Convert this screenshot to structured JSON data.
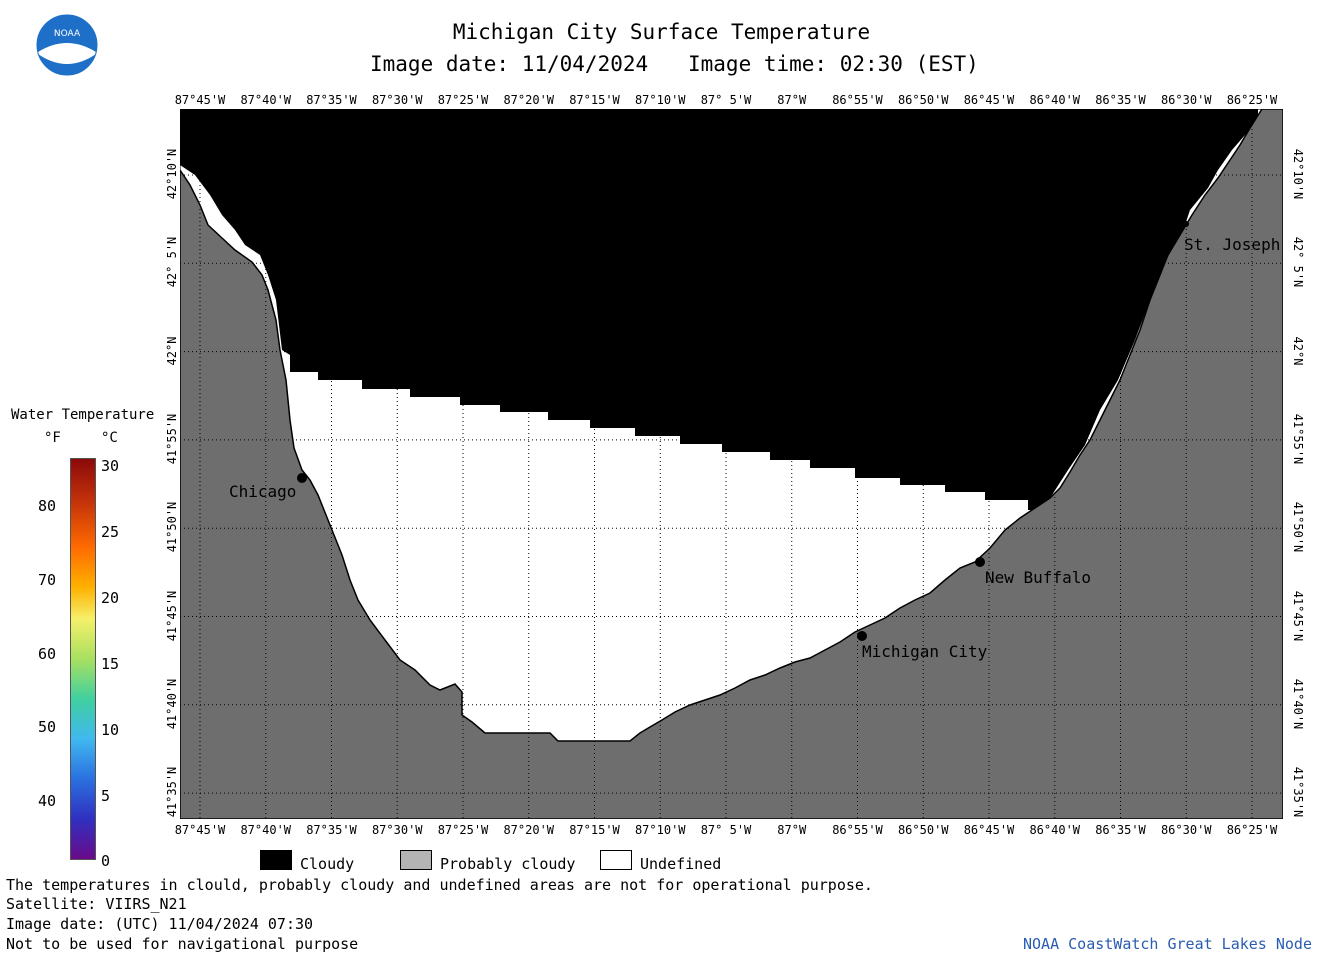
{
  "header": {
    "logo_text": "NOAA",
    "title": "Michigan City Surface Temperature",
    "image_date_label": "Image date: 11/04/2024",
    "image_time_label": "Image time: 02:30 (EST)"
  },
  "map": {
    "longitude_ticks": [
      "87°45'W",
      "87°40'W",
      "87°35'W",
      "87°30'W",
      "87°25'W",
      "87°20'W",
      "87°15'W",
      "87°10'W",
      "87° 5'W",
      "87°W",
      "86°55'W",
      "86°50'W",
      "86°45'W",
      "86°40'W",
      "86°35'W",
      "86°30'W",
      "86°25'W"
    ],
    "latitude_ticks": [
      "42°10'N",
      "42° 5'N",
      "42°N",
      "41°55'N",
      "41°50'N",
      "41°45'N",
      "41°40'N",
      "41°35'N"
    ],
    "places": [
      {
        "name": "Chicago"
      },
      {
        "name": "Michigan City"
      },
      {
        "name": "New Buffalo"
      },
      {
        "name": "St. Joseph"
      }
    ],
    "colors": {
      "cloudy": "#000000",
      "land": "#6e6e6e",
      "undefined": "#ffffff",
      "grid": "#000000"
    }
  },
  "color_scale": {
    "title": "Water Temperature",
    "unit_f": "°F",
    "unit_c": "°C",
    "fahrenheit": [
      "80",
      "70",
      "60",
      "50",
      "40"
    ],
    "celsius": [
      "30",
      "25",
      "20",
      "15",
      "10",
      "5",
      "0"
    ]
  },
  "legend": {
    "cloudy": "Cloudy",
    "probably_cloudy": "Probably cloudy",
    "undefined": "Undefined",
    "cloudy_color": "#000000",
    "probably_cloudy_color": "#b4b4b4",
    "undefined_color": "#ffffff"
  },
  "footer": {
    "disclaimer": "The temperatures in clould, probably cloudy and undefined areas are not for operational purpose.",
    "satellite": "Satellite: VIIRS_N21",
    "utc_date": "Image date: (UTC) 11/04/2024  07:30",
    "navigation": "Not to be used for navigational purpose",
    "credit": "NOAA CoastWatch Great Lakes Node"
  }
}
